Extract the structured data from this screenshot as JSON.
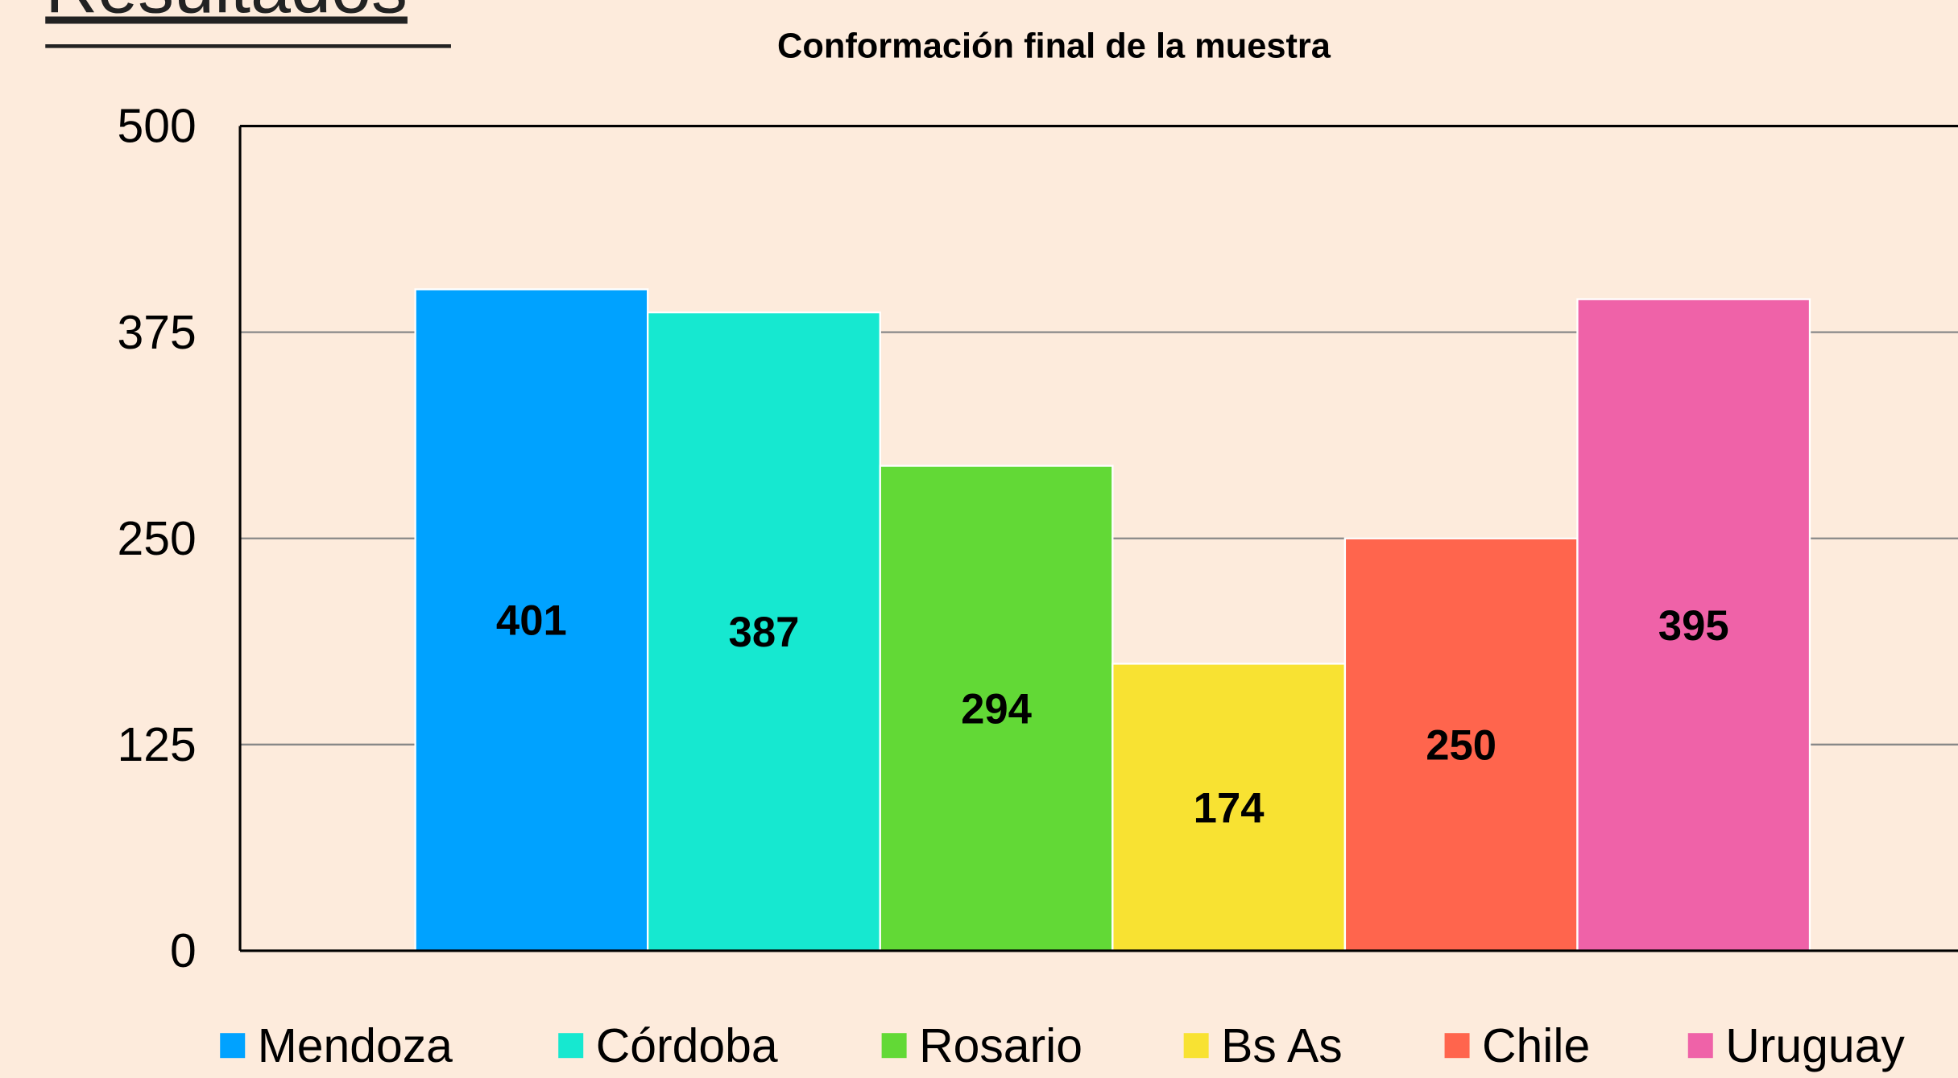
{
  "heading": "Resultados",
  "chart_data": {
    "type": "bar",
    "title": "Conformación final de la muestra",
    "series": [
      {
        "name": "Mendoza",
        "color": "#00a2ff",
        "values": [
          401
        ]
      },
      {
        "name": "Córdoba",
        "color": "#16e8d0",
        "values": [
          387
        ]
      },
      {
        "name": "Rosario",
        "color": "#62d936",
        "values": [
          294
        ]
      },
      {
        "name": "Bs As",
        "color": "#f8e232",
        "values": [
          174
        ]
      },
      {
        "name": "Chile",
        "color": "#ff654d",
        "values": [
          250
        ]
      },
      {
        "name": "Uruguay",
        "color": "#ef62a8",
        "values": [
          395
        ]
      }
    ],
    "ylim": [
      0,
      500
    ],
    "yticks": [
      0,
      125,
      250,
      375,
      500
    ],
    "grid": true,
    "legend": "bottom"
  }
}
